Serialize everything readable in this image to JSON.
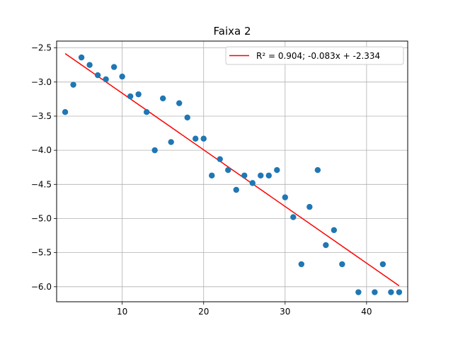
{
  "chart_data": {
    "type": "scatter",
    "title": "Faixa 2",
    "xlabel": "",
    "ylabel": "",
    "xlim": [
      1.95,
      45.05
    ],
    "ylim": [
      -6.22,
      -2.4
    ],
    "xticks": [
      10,
      20,
      30,
      40
    ],
    "xtick_labels": [
      "10",
      "20",
      "30",
      "40"
    ],
    "yticks": [
      -2.5,
      -3.0,
      -3.5,
      -4.0,
      -4.5,
      -5.0,
      -5.5,
      -6.0
    ],
    "ytick_labels": [
      "−2.5",
      "−3.0",
      "−3.5",
      "−4.0",
      "−4.5",
      "−5.0",
      "−5.5",
      "−6.0"
    ],
    "grid": true,
    "legend_position": "top-right",
    "colors": {
      "points": "#1f77b4",
      "fit": "#ff0000",
      "grid": "#b0b0b0"
    },
    "points": {
      "x": [
        3,
        4,
        5,
        6,
        7,
        8,
        9,
        10,
        11,
        12,
        13,
        14,
        15,
        16,
        17,
        18,
        19,
        20,
        21,
        22,
        23,
        24,
        25,
        26,
        27,
        28,
        29,
        30,
        31,
        32,
        33,
        34,
        35,
        36,
        37,
        39,
        41,
        42,
        43,
        44
      ],
      "y": [
        -3.44,
        -3.04,
        -2.64,
        -2.75,
        -2.9,
        -2.96,
        -2.78,
        -2.92,
        -3.21,
        -3.18,
        -3.44,
        -4.0,
        -3.24,
        -3.88,
        -3.31,
        -3.52,
        -3.83,
        -3.83,
        -4.37,
        -4.13,
        -4.29,
        -4.58,
        -4.37,
        -4.48,
        -4.37,
        -4.37,
        -4.29,
        -4.69,
        -4.98,
        -5.67,
        -4.83,
        -4.29,
        -5.39,
        -5.17,
        -5.67,
        -6.08,
        -6.08,
        -5.67,
        -6.08,
        -6.08
      ]
    },
    "fit_line": {
      "label": "R² = 0.904; -0.083x + -2.334",
      "x": [
        3,
        44
      ],
      "y": [
        -2.583,
        -5.986
      ]
    }
  }
}
